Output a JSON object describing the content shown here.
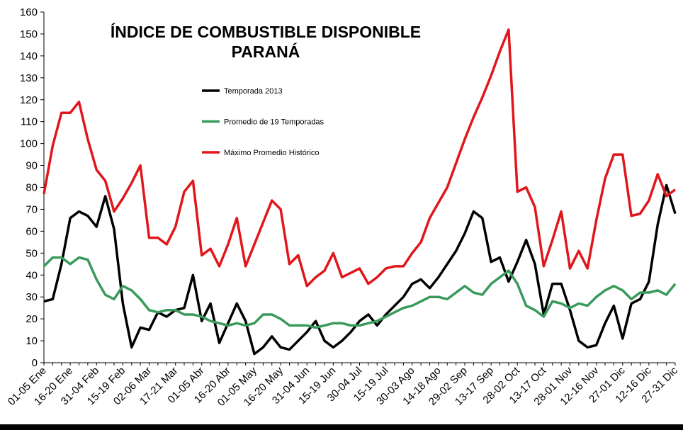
{
  "chart_data": {
    "type": "line",
    "title": "ÍNDICE DE COMBUSTIBLE DISPONIBLE",
    "subtitle": "PARANÁ",
    "categories": [
      "01-05 Ene",
      null,
      null,
      "16-20 Ene",
      null,
      null,
      "31-04 Feb",
      null,
      null,
      "15-19 Feb",
      null,
      null,
      "02-06 Mar",
      null,
      null,
      "17-21 Mar",
      null,
      null,
      "01-05 Abr",
      null,
      null,
      "16-20 Abr",
      null,
      null,
      "01-05 May",
      null,
      null,
      "16-20 May",
      null,
      null,
      "31-04 Jun",
      null,
      null,
      "15-19 Jun",
      null,
      null,
      "30-04 Jul",
      null,
      null,
      "15-19 Jul",
      null,
      null,
      "30-03 Ago",
      null,
      null,
      "14-18 Ago",
      null,
      null,
      "29-02 Sep",
      null,
      null,
      "13-17 Sep",
      null,
      null,
      "28-02 Oct",
      null,
      null,
      "13-17 Oct",
      null,
      null,
      "28-01 Nov",
      null,
      null,
      "12-16 Nov",
      null,
      null,
      "27-01 Dic",
      null,
      null,
      "12-16 Dic",
      null,
      null,
      "27-31 Dic"
    ],
    "series": [
      {
        "name": "Temporada 2013",
        "color": "#000000",
        "values": [
          28,
          29,
          45,
          66,
          69,
          67,
          62,
          76,
          61,
          27,
          7,
          16,
          15,
          23,
          21,
          24,
          25,
          40,
          19,
          27,
          9,
          18,
          27,
          19,
          4,
          7,
          12,
          7,
          6,
          10,
          14,
          19,
          10,
          7,
          10,
          14,
          19,
          22,
          17,
          22,
          26,
          30,
          36,
          38,
          34,
          39,
          45,
          51,
          59,
          69,
          66,
          46,
          48,
          37,
          46,
          56,
          45,
          22,
          36,
          36,
          24,
          10,
          7,
          8,
          18,
          26,
          11,
          27,
          29,
          37,
          63,
          81,
          68
        ]
      },
      {
        "name": "Promedio de 19 Temporadas",
        "color": "#3a9a5c",
        "values": [
          44,
          48,
          48,
          45,
          48,
          47,
          38,
          31,
          29,
          35,
          33,
          29,
          24,
          23,
          24,
          24,
          22,
          22,
          21,
          19,
          18,
          17,
          18,
          17,
          18,
          22,
          22,
          20,
          17,
          17,
          17,
          16,
          17,
          18,
          18,
          17,
          17,
          18,
          19,
          21,
          23,
          25,
          26,
          28,
          30,
          30,
          29,
          32,
          35,
          32,
          31,
          36,
          39,
          42,
          36,
          26,
          24,
          21,
          28,
          27,
          25,
          27,
          26,
          30,
          33,
          35,
          33,
          29,
          32,
          32,
          33,
          31,
          36
        ]
      },
      {
        "name": "Máximo Promedio Histórico",
        "color": "#e0161b",
        "values": [
          77,
          99,
          114,
          114,
          119,
          102,
          88,
          83,
          69,
          75,
          82,
          90,
          57,
          57,
          54,
          62,
          78,
          83,
          49,
          52,
          44,
          54,
          66,
          44,
          54,
          64,
          74,
          70,
          45,
          49,
          35,
          39,
          42,
          50,
          39,
          41,
          43,
          36,
          39,
          43,
          44,
          44,
          50,
          55,
          66,
          73,
          80,
          91,
          102,
          112,
          121,
          131,
          142,
          152,
          78,
          80,
          71,
          44,
          56,
          69,
          43,
          51,
          43,
          65,
          84,
          95,
          95,
          67,
          68,
          74,
          86,
          76,
          79
        ]
      }
    ],
    "ylim": [
      0,
      160
    ],
    "yticks": [
      0,
      10,
      20,
      30,
      40,
      50,
      60,
      70,
      80,
      90,
      100,
      110,
      120,
      130,
      140,
      150,
      160
    ]
  }
}
